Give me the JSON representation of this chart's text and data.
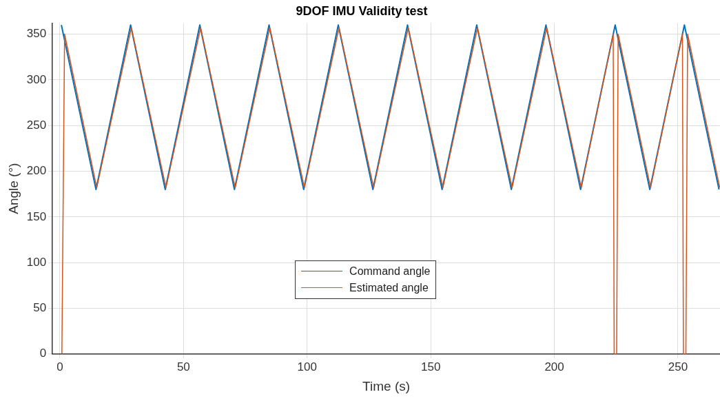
{
  "chart_data": {
    "type": "line",
    "title": "9DOF IMU Validity test",
    "xlabel": "Time (s)",
    "ylabel": "Angle (°)",
    "xlim": [
      -3,
      267
    ],
    "xticks": [
      0,
      50,
      100,
      150,
      200,
      250
    ],
    "ylim": [
      0,
      362
    ],
    "yticks": [
      0,
      50,
      100,
      150,
      200,
      250,
      300,
      350
    ],
    "grid": true,
    "legend": "bottom",
    "series": [
      {
        "name": "Command angle",
        "color": "#0072bd",
        "x": [
          0.6,
          14.6,
          28.6,
          42.6,
          56.6,
          70.6,
          84.6,
          98.6,
          112.6,
          126.6,
          140.6,
          154.6,
          168.6,
          182.6,
          196.6,
          210.6,
          224.6,
          238.6,
          252.6,
          266.6
        ],
        "values": [
          360,
          180,
          360,
          180,
          360,
          180,
          360,
          180,
          360,
          180,
          360,
          180,
          360,
          180,
          360,
          180,
          360,
          180,
          360,
          180
        ]
      },
      {
        "name": "Estimated angle",
        "color": "#d95319",
        "x": [
          0.8,
          1.9,
          14.9,
          28.9,
          42.9,
          56.9,
          70.9,
          84.9,
          98.9,
          112.9,
          126.9,
          140.9,
          154.9,
          168.9,
          182.9,
          196.9,
          210.9,
          223.8,
          224.2,
          225.2,
          225.8,
          238.9,
          251.8,
          252.2,
          253.2,
          253.9,
          266.9
        ],
        "values": [
          0,
          350,
          182,
          357,
          182,
          357,
          182,
          357,
          182,
          357,
          182,
          357,
          182,
          357,
          182,
          357,
          182,
          350,
          0,
          0,
          350,
          182,
          350,
          0,
          0,
          350,
          182
        ]
      }
    ]
  }
}
